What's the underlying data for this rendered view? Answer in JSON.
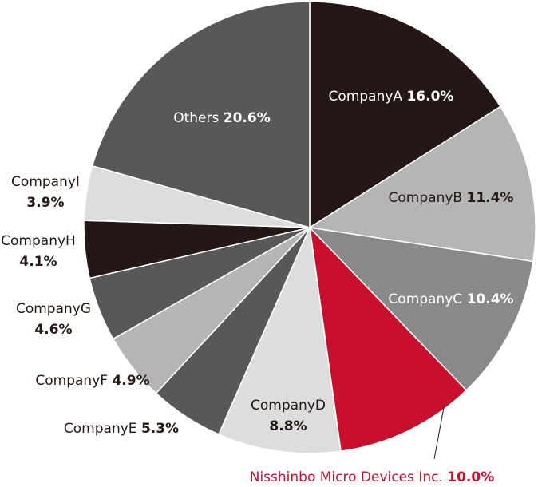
{
  "chart_data": {
    "type": "pie",
    "start_angle_deg": 0,
    "direction": "clockwise",
    "slices": [
      {
        "name": "CompanyA",
        "value_label": "16.0%",
        "value": 16.0,
        "color": "#231815",
        "label_color": "#ffffff"
      },
      {
        "name": "CompanyB",
        "value_label": "11.4%",
        "value": 11.4,
        "color": "#b5b5b6",
        "label_color": "#231815"
      },
      {
        "name": "CompanyC",
        "value_label": "10.4%",
        "value": 10.4,
        "color": "#898989",
        "label_color": "#ffffff"
      },
      {
        "name": "Nisshinbo Micro Devices Inc.",
        "value_label": "10.0%",
        "value": 10.0,
        "color": "#c8102e",
        "label_color": "#c8102e"
      },
      {
        "name": "CompanyD",
        "value_label": "8.8%",
        "value": 8.8,
        "color": "#dcdddd",
        "label_color": "#231815"
      },
      {
        "name": "CompanyE",
        "value_label": "5.3%",
        "value": 5.3,
        "color": "#595757",
        "label_color": "#231815"
      },
      {
        "name": "CompanyF",
        "value_label": "4.9%",
        "value": 4.9,
        "color": "#b5b5b6",
        "label_color": "#231815"
      },
      {
        "name": "CompanyG",
        "value_label": "4.6%",
        "value": 4.6,
        "color": "#595757",
        "label_color": "#231815"
      },
      {
        "name": "CompanyH",
        "value_label": "4.1%",
        "value": 4.1,
        "color": "#231815",
        "label_color": "#231815"
      },
      {
        "name": "CompanyI",
        "value_label": "3.9%",
        "value": 3.9,
        "color": "#dcdddd",
        "label_color": "#231815"
      },
      {
        "name": "Others",
        "value_label": "20.6%",
        "value": 20.6,
        "color": "#595757",
        "label_color": "#ffffff"
      }
    ]
  }
}
